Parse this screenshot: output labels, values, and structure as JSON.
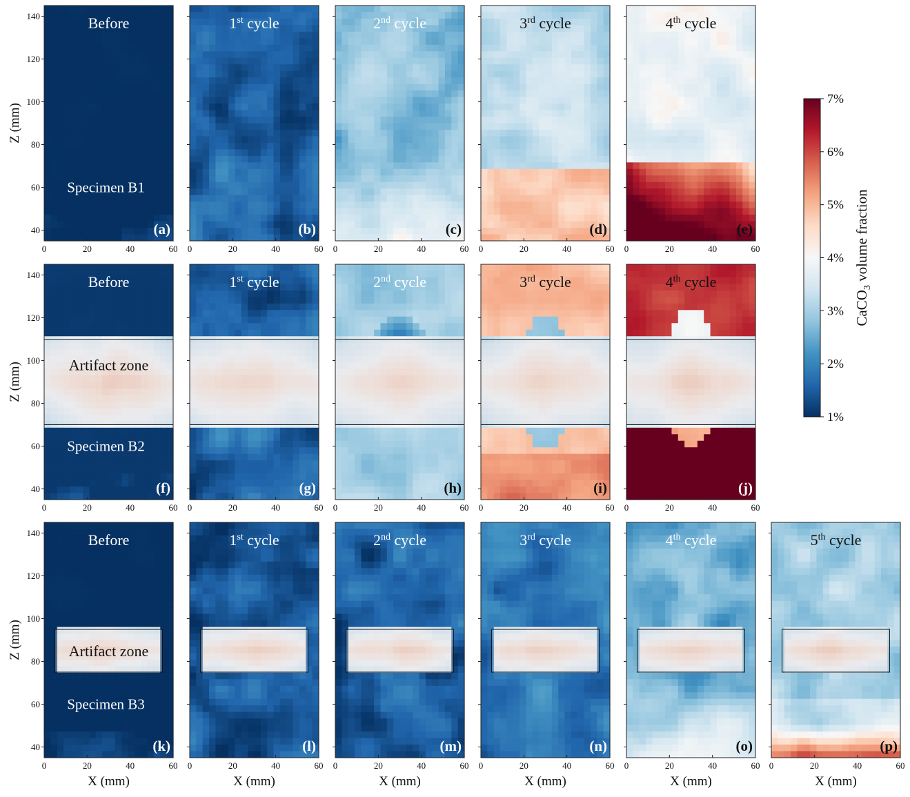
{
  "chart_data": {
    "type": "heatmap",
    "title": "",
    "xlabel": "X (mm)",
    "ylabel": "Z (mm)",
    "xlim": [
      0,
      60
    ],
    "ylim": [
      35,
      145
    ],
    "xticks": [
      0,
      20,
      40,
      60
    ],
    "yticks": [
      40,
      60,
      80,
      100,
      120,
      140
    ],
    "grid": false,
    "colormap": "RdBu_r",
    "colorbar": {
      "label_main": "CaCO",
      "label_sub": "3",
      "label_rest": " volume fraction",
      "vmin": 1,
      "vmax": 7,
      "ticks": [
        1,
        2,
        3,
        4,
        5,
        6,
        7
      ],
      "tick_labels": [
        "1%",
        "2%",
        "3%",
        "4%",
        "5%",
        "6%",
        "7%"
      ],
      "stops": [
        "#053061",
        "#2166ac",
        "#4393c3",
        "#92c5de",
        "#d1e5f0",
        "#f7f7f7",
        "#fddbc7",
        "#f4a582",
        "#d6604d",
        "#b2182b",
        "#67001f"
      ]
    },
    "rows": [
      {
        "specimen": "Specimen B1",
        "artifact_zone": null,
        "panels": [
          {
            "letter": "(a)",
            "stage": "Before",
            "sup": "",
            "title_color": "light",
            "letter_color": "light",
            "mean_pct": 1.0,
            "pattern": "uniform"
          },
          {
            "letter": "(b)",
            "stage": "1",
            "sup": "st",
            "title_color": "light",
            "letter_color": "light",
            "mean_pct": 1.6,
            "pattern": "patchy"
          },
          {
            "letter": "(c)",
            "stage": "2",
            "sup": "nd",
            "title_color": "light",
            "letter_color": "dark",
            "mean_pct": 2.7,
            "pattern": "patchy-bottom-light"
          },
          {
            "letter": "(d)",
            "stage": "3",
            "sup": "rd",
            "title_color": "dark",
            "letter_color": "dark",
            "mean_pct": 3.5,
            "pattern": "bottom-warm"
          },
          {
            "letter": "(e)",
            "stage": "4",
            "sup": "th",
            "title_color": "dark",
            "letter_color": "dark",
            "mean_pct": 4.5,
            "pattern": "bottom-hot"
          }
        ]
      },
      {
        "specimen": "Specimen B2",
        "artifact_zone": {
          "z_min": 70,
          "z_max": 110,
          "label": "Artifact zone"
        },
        "panels": [
          {
            "letter": "(f)",
            "stage": "Before",
            "sup": "",
            "title_color": "light",
            "letter_color": "light",
            "mean_pct": 1.1,
            "pattern": "uniform"
          },
          {
            "letter": "(g)",
            "stage": "1",
            "sup": "st",
            "title_color": "light",
            "letter_color": "light",
            "mean_pct": 1.6,
            "pattern": "patchy"
          },
          {
            "letter": "(h)",
            "stage": "2",
            "sup": "nd",
            "title_color": "light",
            "letter_color": "dark",
            "mean_pct": 2.6,
            "pattern": "center-dark"
          },
          {
            "letter": "(i)",
            "stage": "3",
            "sup": "rd",
            "title_color": "dark",
            "letter_color": "dark",
            "mean_pct": 4.3,
            "pattern": "ring-warm"
          },
          {
            "letter": "(j)",
            "stage": "4",
            "sup": "th",
            "title_color": "dark",
            "letter_color": "light",
            "mean_pct": 5.8,
            "pattern": "ring-hot"
          }
        ]
      },
      {
        "specimen": "Specimen B3",
        "artifact_zone": {
          "z_min": 75,
          "z_max": 95,
          "x_min": 5,
          "x_max": 55,
          "label": "Artifact zone"
        },
        "panels": [
          {
            "letter": "(k)",
            "stage": "Before",
            "sup": "",
            "title_color": "light",
            "letter_color": "light",
            "mean_pct": 1.0,
            "pattern": "uniform"
          },
          {
            "letter": "(l)",
            "stage": "1",
            "sup": "st",
            "title_color": "light",
            "letter_color": "light",
            "mean_pct": 1.4,
            "pattern": "patchy"
          },
          {
            "letter": "(m)",
            "stage": "2",
            "sup": "nd",
            "title_color": "light",
            "letter_color": "light",
            "mean_pct": 1.5,
            "pattern": "patchy"
          },
          {
            "letter": "(n)",
            "stage": "3",
            "sup": "rd",
            "title_color": "light",
            "letter_color": "light",
            "mean_pct": 1.8,
            "pattern": "patchy"
          },
          {
            "letter": "(o)",
            "stage": "4",
            "sup": "th",
            "title_color": "light",
            "letter_color": "dark",
            "mean_pct": 2.5,
            "pattern": "patchy-bottom-light"
          },
          {
            "letter": "(p)",
            "stage": "5",
            "sup": "th",
            "title_color": "dark",
            "letter_color": "dark",
            "mean_pct": 3.0,
            "pattern": "bottom-warm-light"
          }
        ]
      }
    ],
    "stage_suffix": " cycle"
  }
}
